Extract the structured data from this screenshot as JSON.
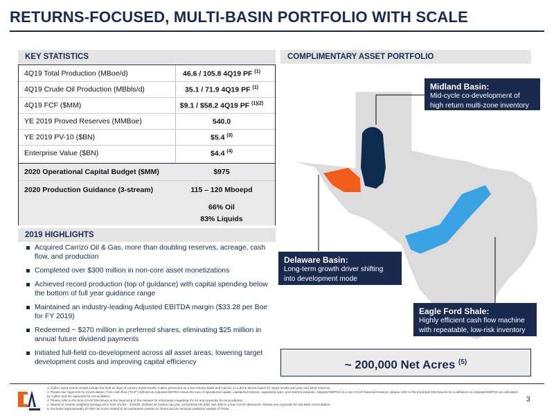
{
  "title": "RETURNS-FOCUSED, MULTI-BASIN PORTFOLIO WITH SCALE",
  "key_statistics": {
    "heading": "KEY STATISTICS",
    "rows": [
      {
        "label": "4Q19 Total Production (MBoe/d)",
        "value": "46.6 / 105.8 4Q19 PF",
        "note": "(1)"
      },
      {
        "label": "4Q19 Crude Oil Production (MBbls/d)",
        "value": "35.1 / 71.9 4Q19 PF",
        "note": "(1)"
      },
      {
        "label": "4Q19 FCF ($MM)",
        "value": "$9.1 / $58.2 4Q19 PF",
        "note": "(1)(2)"
      },
      {
        "label": "YE 2019 Proved Reserves (MMBoe)",
        "value": "540.0",
        "note": ""
      },
      {
        "label": "YE 2019 PV-10 ($BN)",
        "value": "$5.4",
        "note": "(3)"
      },
      {
        "label": "Enterprise Value ($BN)",
        "value": "$4.4",
        "note": "(4)"
      }
    ],
    "budget_label": "2020 Operational Capital Budget ($MM)",
    "budget_value": "$975",
    "guidance_label": "2020 Production Guidance (3-stream)",
    "guidance_value": "115 – 120 Mboepd",
    "oil_pct": "66% Oil",
    "liquids_pct": "83% Liquids"
  },
  "highlights": {
    "heading": "2019 HIGHLIGHTS",
    "items": [
      "Acquired Carrizo Oil & Gas, more than doubling reserves, acreage, cash flow, and production",
      "Completed over $300 million in non-core asset monetizations",
      "Achieved record production (top of guidance) with capital spending below the bottom of full year guidance range",
      "Maintained an industry-leading Adjusted EBITDA margin ($33.28 per Boe for FY 2019)",
      "Redeemed ~ $270 million in preferred shares, eliminating $25 million in annual future dividend payments",
      "Initiated full-field co-development across all asset areas, lowering target development costs and improving capital efficiency"
    ]
  },
  "portfolio": {
    "heading": "COMPLIMENTARY ASSET PORTFOLIO",
    "midland": {
      "title": "Midland Basin:",
      "line1": "Mid-cycle co-development of",
      "line2": "high return multi-zone inventory",
      "color": "#0d2a4f"
    },
    "delaware": {
      "title": "Delaware Basin:",
      "line1": "Long-term growth driver shifting",
      "line2": "into development mode",
      "color": "#f25c19"
    },
    "eagle_ford": {
      "title": "Eagle Ford Shale:",
      "line1": "Highly efficient cash flow machine",
      "line2": "with repeatable, low-risk inventory",
      "color": "#3aa3e3"
    },
    "net_acres": "~ 200,000 Net Acres",
    "net_acres_note": "(5)"
  },
  "footnotes": [
    "1.   Callon 4Q19 actual results include the final 11 days of Carrizo 4Q19 results. Callon presented on a two-stream basis and Carrizo on a three-stream basis for 4Q19 results and year end 2019 reserves.",
    "2.   Please see Appendix for reconciliation. Free cash flow (\"FCF\") defined as Adjusted EBITDA minus the sum of operational capital, capitalized interest, capitalized G&A, and interest expense. Adjusted EBITDA is a non-GAAP financial measure; please refer to the Important Disclosures for a definition on Adjusted EBITDA as calculated by Callon and the Appendix for reconciliation.",
    "3.   Please refer to the Non-GAAP Disclosure at the beginning of this release for information regarding PV-10 and Appendix for reconciliation.",
    "4.   Based on volume weighted average price from 2/1/20 – 2/28/20. Defined as market cap plus 12/31/2019 net debt. Net debt is a Non-GAAP disclosure. Please see Appendix for Net Debt reconciliation.",
    "5.   Excludes approximately 57,000 net acres related to an exploration position in Texas and de minimus positions outside of Texas."
  ],
  "page_number": "3",
  "colors": {
    "navy": "#1a2a4f",
    "gray_band": "#e4e4e4",
    "map_gray": "#dcdcdc"
  }
}
